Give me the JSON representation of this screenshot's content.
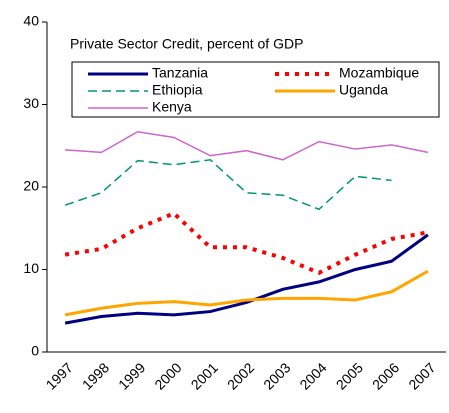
{
  "chart_data": {
    "type": "line",
    "title": "Private Sector Credit, percent of GDP",
    "categories": [
      "1997",
      "1998",
      "1999",
      "2000",
      "2001",
      "2002",
      "2003",
      "2004",
      "2005",
      "2006",
      "2007"
    ],
    "ylim": [
      0,
      40
    ],
    "yticks": [
      0,
      10,
      20,
      30,
      40
    ],
    "series": [
      {
        "name": "Tanzania",
        "color": "#000080",
        "width": 3,
        "dash": "none",
        "values": [
          3.5,
          4.3,
          4.7,
          4.5,
          4.9,
          6.0,
          7.6,
          8.5,
          10.0,
          11.0,
          14.2
        ]
      },
      {
        "name": "Mozambique",
        "color": "#ff0000",
        "width": 4,
        "dash": "4 6",
        "values": [
          11.8,
          12.5,
          15.0,
          16.8,
          12.7,
          12.7,
          11.4,
          9.6,
          11.8,
          13.7,
          14.5
        ]
      },
      {
        "name": "Ethiopia",
        "color": "#009966",
        "width": 1.5,
        "dash": "9 5",
        "values": [
          17.8,
          19.3,
          23.2,
          22.7,
          23.3,
          19.3,
          19.0,
          17.3,
          21.3,
          20.8,
          null
        ]
      },
      {
        "name": "Uganda",
        "color": "#ffa500",
        "width": 3,
        "dash": "none",
        "values": [
          4.5,
          5.3,
          5.9,
          6.1,
          5.7,
          6.3,
          6.5,
          6.5,
          6.3,
          7.3,
          9.8
        ]
      },
      {
        "name": "Kenya",
        "color": "#cc66cc",
        "width": 1.5,
        "dash": "none",
        "values": [
          24.5,
          24.2,
          26.7,
          26.0,
          23.8,
          24.4,
          23.3,
          25.5,
          24.6,
          25.1,
          24.2
        ]
      }
    ]
  }
}
